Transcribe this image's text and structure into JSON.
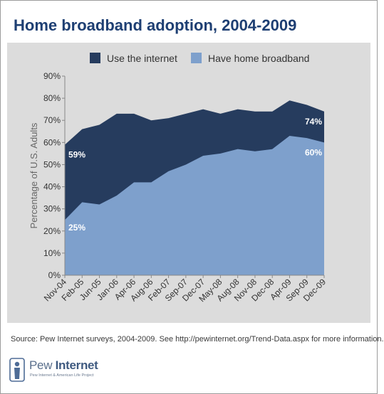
{
  "title": "Home broadband adoption, 2004-2009",
  "colors": {
    "title": "#1e3f73",
    "internet": "#263c5e",
    "broadband": "#7ea0cc",
    "panel": "#dcdcdc"
  },
  "chart_data": {
    "type": "area",
    "x": [
      "Nov-04",
      "Feb-05",
      "Jun-05",
      "Jan-06",
      "Apr-06",
      "Aug-06",
      "Feb-07",
      "Sep-07",
      "Dec-07",
      "May-08",
      "Aug-08",
      "Nov-08",
      "Dec-08",
      "Apr-09",
      "Sep-09",
      "Dec-09"
    ],
    "series": [
      {
        "name": "Use the internet",
        "values": [
          59,
          66,
          68,
          73,
          73,
          70,
          71,
          73,
          75,
          73,
          75,
          74,
          74,
          79,
          77,
          74
        ]
      },
      {
        "name": "Have home broadband",
        "values": [
          25,
          33,
          32,
          36,
          42,
          42,
          47,
          50,
          54,
          55,
          57,
          56,
          57,
          63,
          62,
          60
        ]
      }
    ],
    "ylabel": "Percentage of U.S. Adults",
    "ylim": [
      0,
      90
    ],
    "yticks": [
      "0%",
      "10%",
      "20%",
      "30%",
      "40%",
      "50%",
      "60%",
      "70%",
      "80%",
      "90%"
    ],
    "annotations": {
      "internet_start": "59%",
      "internet_end": "74%",
      "broadband_start": "25%",
      "broadband_end": "60%"
    },
    "legend": "top",
    "grid": false
  },
  "source": "Source: Pew Internet surveys, 2004-2009. See http://pewinternet.org/Trend-Data.aspx for more information.",
  "logo": {
    "name_a": "Pew",
    "name_b": "Internet",
    "subtitle": "Pew Internet & American Life Project"
  }
}
